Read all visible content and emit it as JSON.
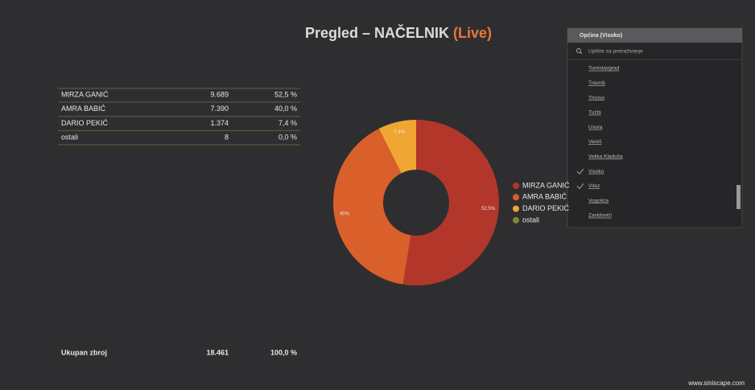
{
  "header": {
    "title": "Pregled – NAČELNIK",
    "title_live": "(Live)"
  },
  "table": {
    "rows": [
      [
        "MIRZA GANIĆ",
        "9.689",
        "52,5 %"
      ],
      [
        "AMRA BABIĆ",
        "7.390",
        "40,0 %"
      ],
      [
        "DARIO PEKIĆ",
        "1.374",
        "7,4 %"
      ],
      [
        "ostali",
        "8",
        "0,0 %"
      ]
    ],
    "total": [
      "Ukupan zbroj",
      "18.461",
      "100,0 %"
    ]
  },
  "chart_data": {
    "type": "pie",
    "donut": true,
    "categories": [
      "MIRZA GANIĆ",
      "AMRA BABIĆ",
      "DARIO PEKIĆ",
      "ostali"
    ],
    "values": [
      52.5,
      40,
      7.4,
      0
    ],
    "value_labels": [
      "52,5%",
      "40%",
      "7,4%",
      null
    ],
    "colors": [
      "#b2372a",
      "#d95f2b",
      "#f0a633",
      "#7d8a2c"
    ],
    "legend": "right"
  },
  "dropdown": {
    "title": "Općina (Visoko)",
    "search_placeholder": "Upišite za pretraživanje",
    "items": [
      {
        "label": "Tomislavgrad",
        "checked": false
      },
      {
        "label": "Travnik",
        "checked": false
      },
      {
        "label": "Trnovo",
        "checked": false
      },
      {
        "label": "Tuzla",
        "checked": false
      },
      {
        "label": "Usora",
        "checked": false
      },
      {
        "label": "Vareš",
        "checked": false
      },
      {
        "label": "Velika Kladuša",
        "checked": false
      },
      {
        "label": "Visoko",
        "checked": true
      },
      {
        "label": "Vitez",
        "checked": true
      },
      {
        "label": "Vogošća",
        "checked": false
      },
      {
        "label": "Zavidovići",
        "checked": false
      }
    ]
  },
  "footer": {
    "site": "www.siniscape.com"
  }
}
